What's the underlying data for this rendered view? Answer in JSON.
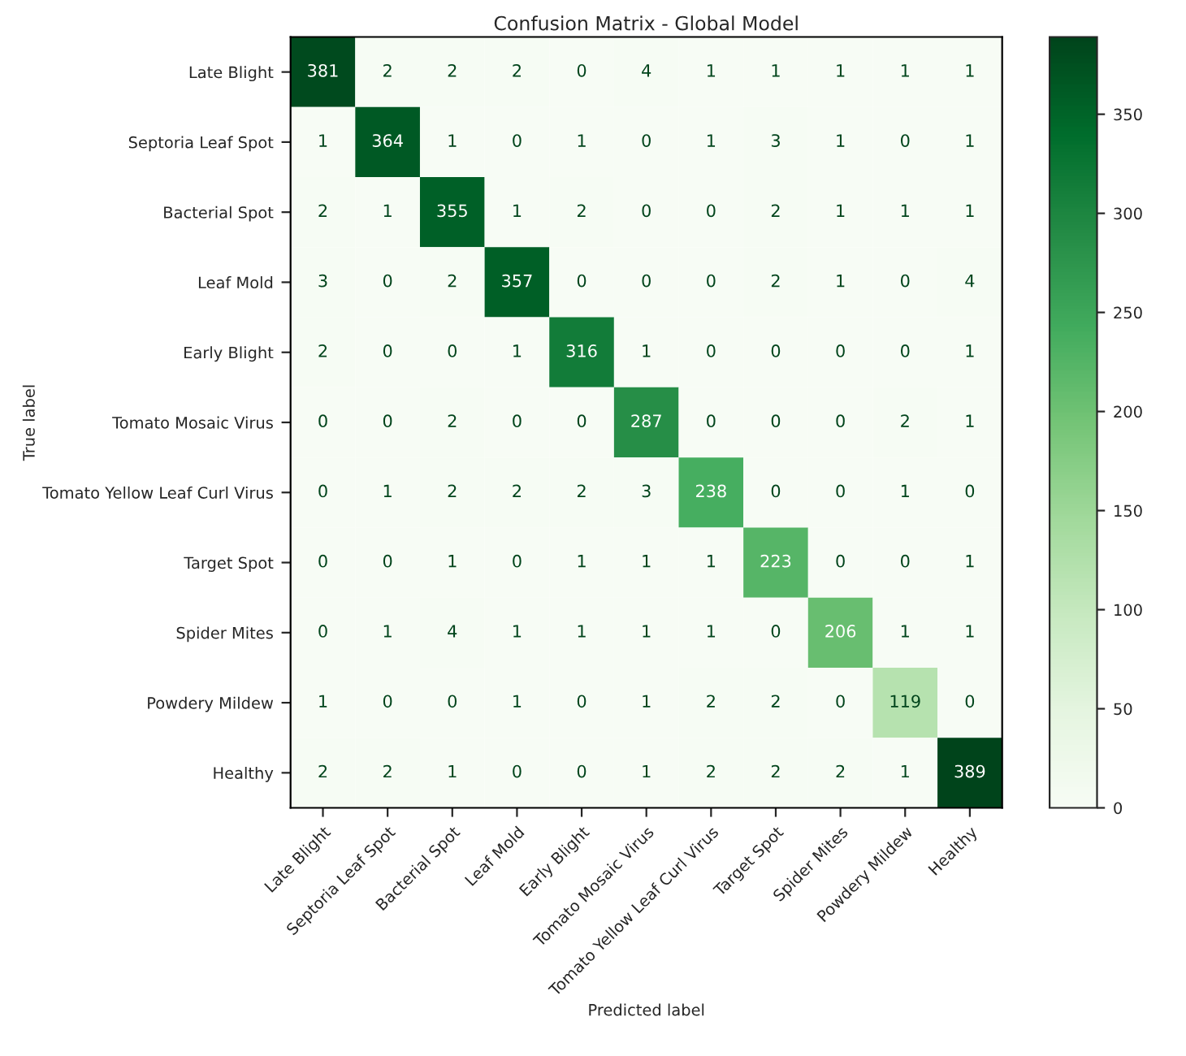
{
  "chart_data": {
    "type": "heatmap",
    "title": "Confusion Matrix - Global Model",
    "xlabel": "Predicted label",
    "ylabel": "True label",
    "categories": [
      "Late Blight",
      "Septoria Leaf Spot",
      "Bacterial Spot",
      "Leaf Mold",
      "Early Blight",
      "Tomato Mosaic Virus",
      "Tomato Yellow Leaf Curl Virus",
      "Target Spot",
      "Spider Mites",
      "Powdery Mildew",
      "Healthy"
    ],
    "y_categories": [
      "Late Blight",
      "Septoria Leaf Spot",
      "Bacterial Spot",
      "Leaf Mold",
      "Early Blight",
      "Tomato Mosaic Virus",
      "Tomato Yellow Leaf Curl Virus",
      "Target Spot",
      "Spider Mites",
      "Powdery Mildew",
      "Healthy"
    ],
    "cells": [
      [
        381,
        2,
        2,
        2,
        0,
        4,
        1,
        1,
        1,
        1,
        1
      ],
      [
        1,
        364,
        1,
        0,
        1,
        0,
        1,
        3,
        1,
        0,
        1
      ],
      [
        2,
        1,
        355,
        1,
        2,
        0,
        0,
        2,
        1,
        1,
        1
      ],
      [
        3,
        0,
        2,
        357,
        0,
        0,
        0,
        2,
        1,
        0,
        4
      ],
      [
        2,
        0,
        0,
        1,
        316,
        1,
        0,
        0,
        0,
        0,
        1
      ],
      [
        0,
        0,
        2,
        0,
        0,
        287,
        0,
        0,
        0,
        2,
        1
      ],
      [
        0,
        1,
        2,
        2,
        2,
        3,
        238,
        0,
        0,
        1,
        0
      ],
      [
        0,
        0,
        1,
        0,
        1,
        1,
        1,
        223,
        0,
        0,
        1
      ],
      [
        0,
        1,
        4,
        1,
        1,
        1,
        1,
        0,
        206,
        1,
        1
      ],
      [
        1,
        0,
        0,
        1,
        0,
        1,
        2,
        2,
        0,
        119,
        0
      ],
      [
        2,
        2,
        1,
        0,
        0,
        1,
        2,
        2,
        2,
        1,
        389
      ]
    ],
    "clim": [
      0,
      389
    ],
    "cticks": [
      0,
      50,
      100,
      150,
      200,
      250,
      300,
      350
    ],
    "data_labels": true,
    "grid": false
  }
}
